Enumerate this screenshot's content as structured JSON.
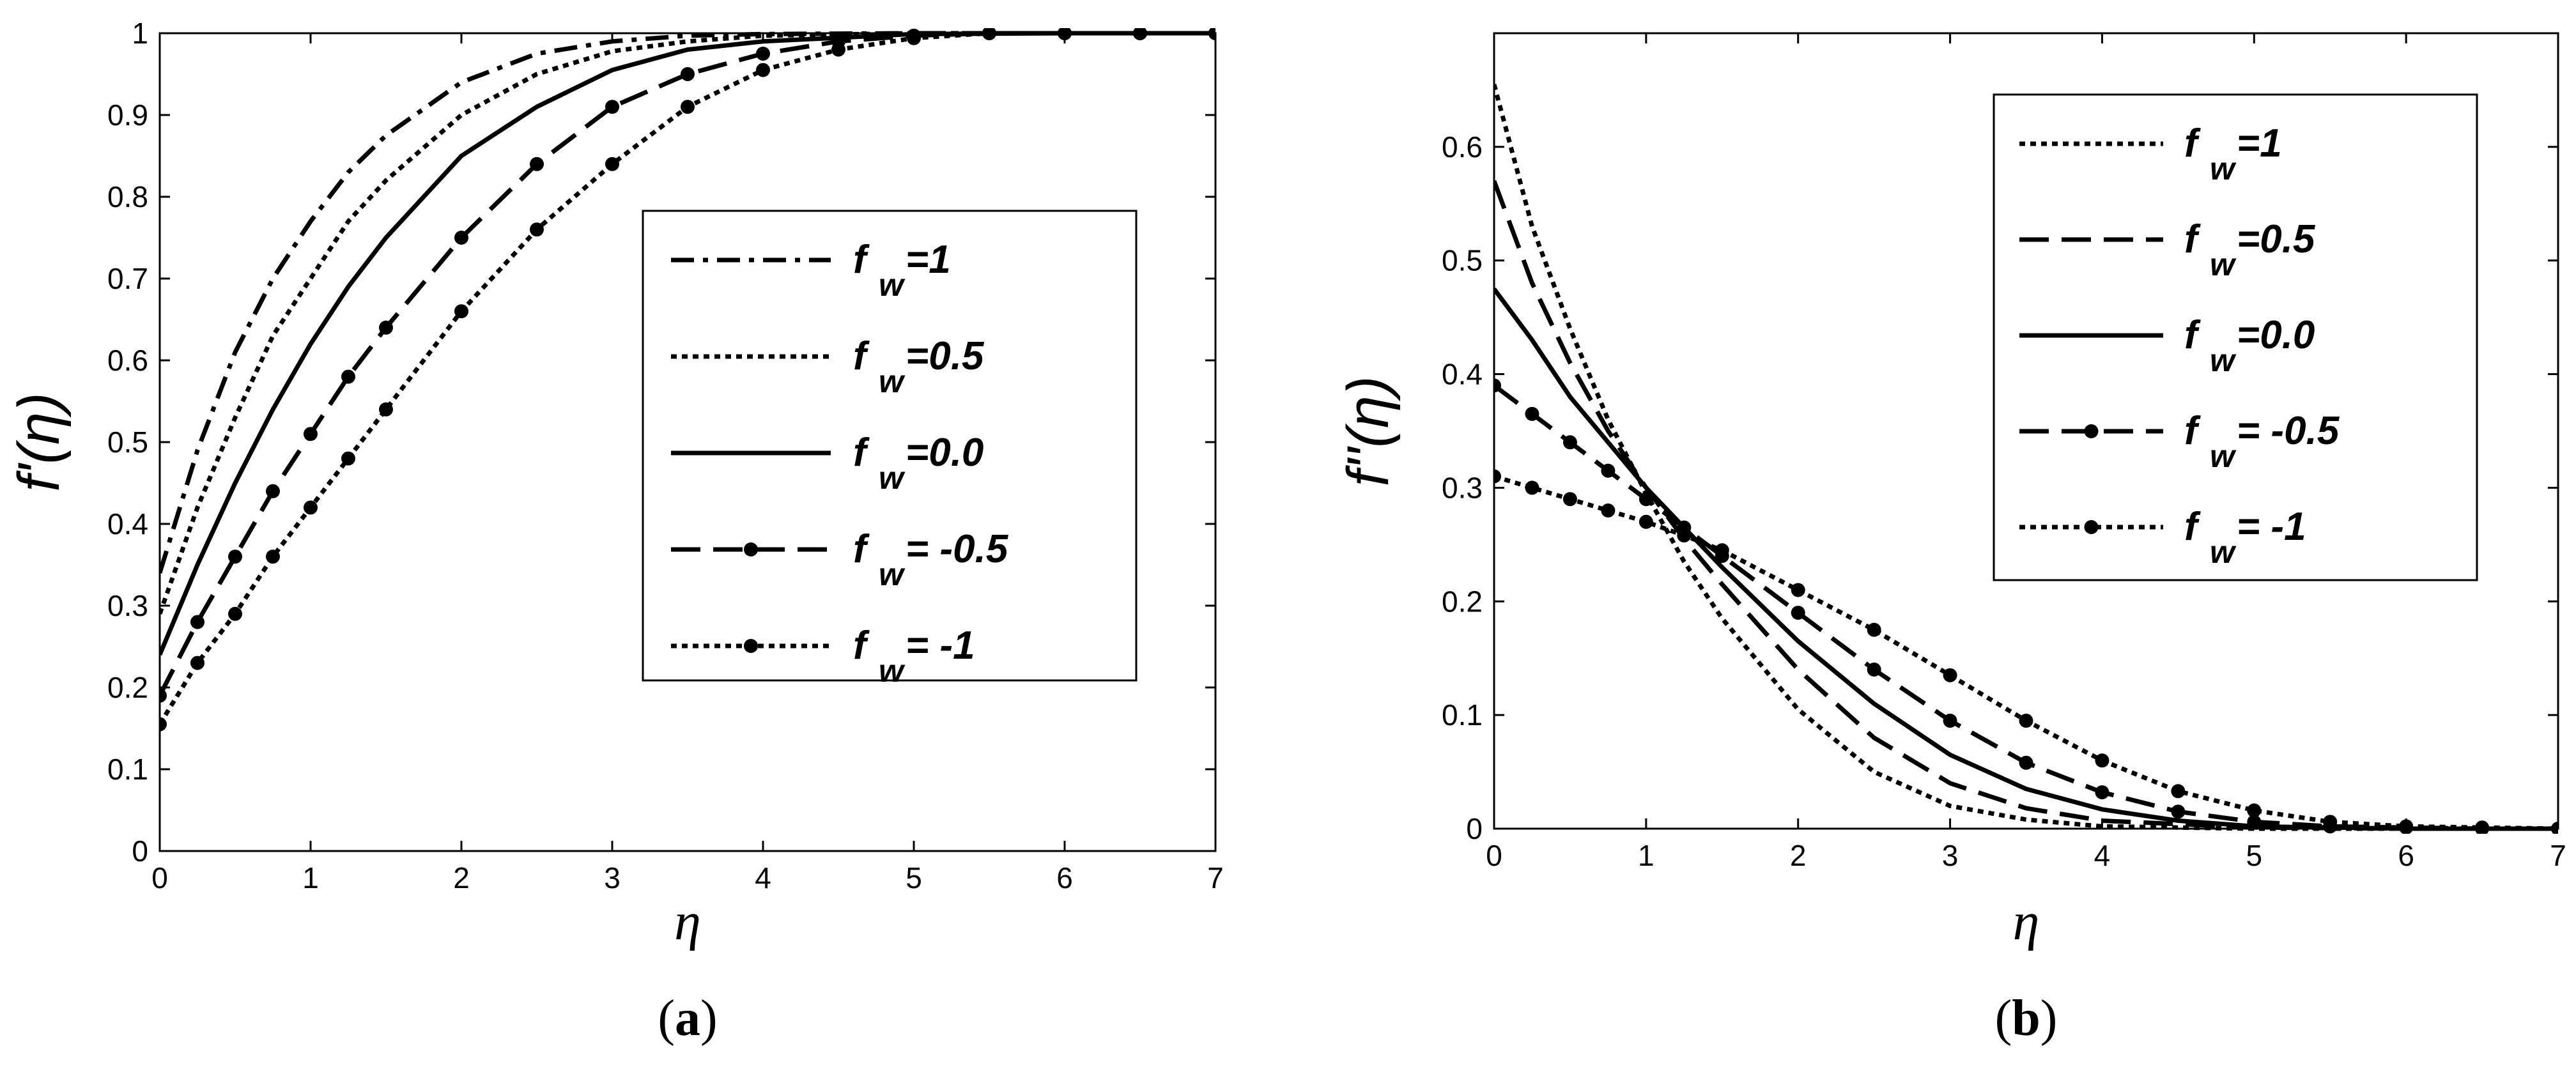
{
  "chart_data": [
    {
      "type": "line",
      "panel_label": "a",
      "ylabel_main": "f'",
      "ylabel_arg": "(η)",
      "xlabel": "η",
      "xlim": [
        0,
        7
      ],
      "ylim": [
        0,
        1
      ],
      "xticks": [
        "0",
        "1",
        "2",
        "3",
        "4",
        "5",
        "6",
        "7"
      ],
      "yticks": [
        "0",
        "0.1",
        "0.2",
        "0.3",
        "0.4",
        "0.5",
        "0.6",
        "0.7",
        "0.8",
        "0.9",
        "1"
      ],
      "legend_position": "center-right",
      "series": [
        {
          "name_base": "f",
          "name_sub": "w",
          "name_tail": "=1",
          "style": "dashdot",
          "markers": false,
          "x": [
            0,
            0.25,
            0.5,
            0.75,
            1,
            1.25,
            1.5,
            2,
            2.5,
            3,
            3.5,
            4,
            5,
            6,
            7
          ],
          "y": [
            0.34,
            0.49,
            0.61,
            0.7,
            0.77,
            0.83,
            0.875,
            0.94,
            0.975,
            0.99,
            0.997,
            0.999,
            1,
            1,
            1
          ]
        },
        {
          "name_base": "f",
          "name_sub": "w",
          "name_tail": "=0.5",
          "style": "dotted",
          "markers": false,
          "x": [
            0,
            0.25,
            0.5,
            0.75,
            1,
            1.25,
            1.5,
            2,
            2.5,
            3,
            3.5,
            4,
            5,
            6,
            7
          ],
          "y": [
            0.29,
            0.42,
            0.53,
            0.63,
            0.7,
            0.77,
            0.82,
            0.9,
            0.95,
            0.978,
            0.99,
            0.997,
            1,
            1,
            1
          ]
        },
        {
          "name_base": "f",
          "name_sub": "w",
          "name_tail": "=0.0",
          "style": "solid",
          "markers": false,
          "x": [
            0,
            0.25,
            0.5,
            0.75,
            1,
            1.25,
            1.5,
            2,
            2.5,
            3,
            3.5,
            4,
            5,
            6,
            7
          ],
          "y": [
            0.24,
            0.35,
            0.45,
            0.54,
            0.62,
            0.69,
            0.75,
            0.85,
            0.91,
            0.955,
            0.98,
            0.99,
            0.999,
            1,
            1
          ]
        },
        {
          "name_base": "f",
          "name_sub": "w",
          "name_tail": "= -0.5",
          "style": "dashed",
          "markers": true,
          "x": [
            0,
            0.25,
            0.5,
            0.75,
            1,
            1.25,
            1.5,
            2,
            2.5,
            3,
            3.5,
            4,
            4.5,
            5,
            5.5,
            6,
            6.5,
            7
          ],
          "y": [
            0.19,
            0.28,
            0.36,
            0.44,
            0.51,
            0.58,
            0.64,
            0.75,
            0.84,
            0.91,
            0.95,
            0.975,
            0.99,
            0.997,
            1,
            1,
            1,
            1
          ]
        },
        {
          "name_base": "f",
          "name_sub": "w",
          "name_tail": "= -1",
          "style": "dotted",
          "markers": true,
          "x": [
            0,
            0.25,
            0.5,
            0.75,
            1,
            1.25,
            1.5,
            2,
            2.5,
            3,
            3.5,
            4,
            4.5,
            5,
            5.5,
            6,
            6.5,
            7
          ],
          "y": [
            0.155,
            0.23,
            0.29,
            0.36,
            0.42,
            0.48,
            0.54,
            0.66,
            0.76,
            0.84,
            0.91,
            0.955,
            0.98,
            0.994,
            1,
            1,
            1,
            1
          ]
        }
      ]
    },
    {
      "type": "line",
      "panel_label": "b",
      "ylabel_main": "f''",
      "ylabel_arg": "(η)",
      "xlabel": "η",
      "xlim": [
        0,
        7
      ],
      "ylim": [
        0,
        0.7
      ],
      "xticks": [
        "0",
        "1",
        "2",
        "3",
        "4",
        "5",
        "6",
        "7"
      ],
      "yticks": [
        "0",
        "0.1",
        "0.2",
        "0.3",
        "0.4",
        "0.5",
        "0.6"
      ],
      "legend_position": "top-right",
      "series": [
        {
          "name_base": "f",
          "name_sub": "w",
          "name_tail": "=1",
          "style": "dotted",
          "markers": false,
          "x": [
            0,
            0.25,
            0.5,
            0.75,
            1,
            1.25,
            1.5,
            2,
            2.5,
            3,
            3.5,
            4,
            5,
            6,
            7
          ],
          "y": [
            0.655,
            0.53,
            0.44,
            0.36,
            0.295,
            0.235,
            0.185,
            0.105,
            0.05,
            0.02,
            0.008,
            0.002,
            0,
            0,
            0
          ]
        },
        {
          "name_base": "f",
          "name_sub": "w",
          "name_tail": "=0.5",
          "style": "dashed",
          "markers": false,
          "x": [
            0,
            0.25,
            0.5,
            0.75,
            1,
            1.25,
            1.5,
            2,
            2.5,
            3,
            3.5,
            4,
            5,
            6,
            7
          ],
          "y": [
            0.57,
            0.48,
            0.41,
            0.35,
            0.3,
            0.255,
            0.215,
            0.14,
            0.08,
            0.04,
            0.018,
            0.007,
            0.001,
            0,
            0
          ]
        },
        {
          "name_base": "f",
          "name_sub": "w",
          "name_tail": "=0.0",
          "style": "solid",
          "markers": false,
          "x": [
            0,
            0.25,
            0.5,
            0.75,
            1,
            1.25,
            1.5,
            2,
            2.5,
            3,
            3.5,
            4,
            4.5,
            5,
            6,
            7
          ],
          "y": [
            0.475,
            0.43,
            0.38,
            0.34,
            0.3,
            0.265,
            0.23,
            0.165,
            0.11,
            0.065,
            0.035,
            0.017,
            0.007,
            0.002,
            0,
            0
          ]
        },
        {
          "name_base": "f",
          "name_sub": "w",
          "name_tail": "= -0.5",
          "style": "dashed",
          "markers": true,
          "x": [
            0,
            0.25,
            0.5,
            0.75,
            1,
            1.25,
            1.5,
            2,
            2.5,
            3,
            3.5,
            4,
            4.5,
            5,
            5.5,
            6,
            6.5,
            7
          ],
          "y": [
            0.39,
            0.365,
            0.34,
            0.315,
            0.29,
            0.265,
            0.24,
            0.19,
            0.14,
            0.095,
            0.058,
            0.032,
            0.015,
            0.006,
            0.002,
            0.001,
            0,
            0
          ]
        },
        {
          "name_base": "f",
          "name_sub": "w",
          "name_tail": "= -1",
          "style": "dotted",
          "markers": true,
          "x": [
            0,
            0.25,
            0.5,
            0.75,
            1,
            1.25,
            1.5,
            2,
            2.5,
            3,
            3.5,
            4,
            4.5,
            5,
            5.5,
            6,
            6.5,
            7
          ],
          "y": [
            0.31,
            0.3,
            0.29,
            0.28,
            0.27,
            0.258,
            0.245,
            0.21,
            0.175,
            0.135,
            0.095,
            0.06,
            0.033,
            0.016,
            0.006,
            0.002,
            0.001,
            0
          ]
        }
      ]
    }
  ]
}
